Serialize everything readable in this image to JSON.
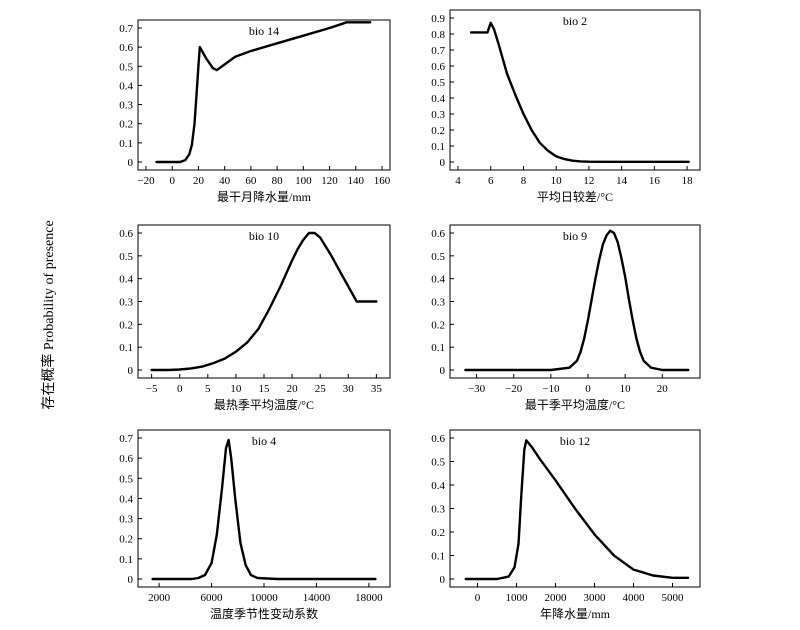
{
  "y_label": "存在概率 Probability of presence",
  "chart_data": [
    {
      "type": "line",
      "title": "bio 14",
      "xlabel": "最干月降水量/mm",
      "ylabel": "",
      "xlim": [
        -20,
        160
      ],
      "ylim": [
        0,
        0.7
      ],
      "xticks": [
        -20,
        0,
        20,
        40,
        60,
        80,
        100,
        120,
        140,
        160
      ],
      "yticks": [
        0,
        0.1,
        0.2,
        0.3,
        0.4,
        0.5,
        0.6,
        0.7
      ],
      "xtick_labels": [
        "−20",
        "0",
        "20",
        "40",
        "60",
        "80",
        "100",
        "120",
        "140",
        "160"
      ],
      "ytick_labels": [
        "0",
        "0.1",
        "0.2",
        "0.3",
        "0.4",
        "0.5",
        "0.6",
        "0.7"
      ],
      "series": [
        {
          "x": [
            -12,
            6,
            10,
            13,
            15,
            17,
            18.5,
            20,
            21,
            26,
            31,
            34,
            40,
            48,
            60,
            80,
            100,
            120,
            133,
            137,
            151
          ],
          "y": [
            0,
            0,
            0.01,
            0.04,
            0.09,
            0.2,
            0.35,
            0.5,
            0.6,
            0.54,
            0.49,
            0.48,
            0.51,
            0.55,
            0.58,
            0.62,
            0.66,
            0.7,
            0.73,
            0.73,
            0.73
          ]
        }
      ]
    },
    {
      "type": "line",
      "title": "bio 2",
      "xlabel": "平均日较差/°C",
      "ylabel": "",
      "xlim": [
        4,
        18.3
      ],
      "ylim": [
        0,
        0.9
      ],
      "xticks": [
        4,
        6,
        8,
        10,
        12,
        14,
        16,
        18
      ],
      "yticks": [
        0,
        0.1,
        0.2,
        0.3,
        0.4,
        0.5,
        0.6,
        0.7,
        0.8,
        0.9
      ],
      "xtick_labels": [
        "4",
        "6",
        "8",
        "10",
        "12",
        "14",
        "16",
        "18"
      ],
      "ytick_labels": [
        "0",
        "0.1",
        "0.2",
        "0.3",
        "0.4",
        "0.5",
        "0.6",
        "0.7",
        "0.8",
        "0.9"
      ],
      "series": [
        {
          "x": [
            4.8,
            5.6,
            5.8,
            6.0,
            6.2,
            6.5,
            7.0,
            7.5,
            8.0,
            8.5,
            9.0,
            9.5,
            10.0,
            10.5,
            11.0,
            11.5,
            12,
            13,
            14,
            16,
            18.1
          ],
          "y": [
            0.81,
            0.81,
            0.81,
            0.87,
            0.83,
            0.73,
            0.55,
            0.42,
            0.3,
            0.2,
            0.12,
            0.07,
            0.035,
            0.018,
            0.008,
            0.004,
            0.002,
            0.001,
            0.001,
            0.001,
            0.001
          ]
        }
      ]
    },
    {
      "type": "line",
      "title": "bio 10",
      "xlabel": "最热季平均温度/°C",
      "ylabel": "",
      "xlim": [
        -6,
        36
      ],
      "ylim": [
        0,
        0.6
      ],
      "xticks": [
        -5,
        0,
        5,
        10,
        15,
        20,
        25,
        30,
        35
      ],
      "yticks": [
        0,
        0.1,
        0.2,
        0.3,
        0.4,
        0.5,
        0.6
      ],
      "xtick_labels": [
        "−5",
        "0",
        "5",
        "10",
        "15",
        "20",
        "25",
        "30",
        "35"
      ],
      "ytick_labels": [
        "0",
        "0.1",
        "0.2",
        "0.3",
        "0.4",
        "0.5",
        "0.6"
      ],
      "series": [
        {
          "x": [
            -5,
            -2,
            0,
            2,
            4,
            6,
            8,
            10,
            12,
            14,
            16,
            18,
            20,
            21,
            22,
            23,
            24,
            25,
            27,
            29,
            31.5,
            33,
            35
          ],
          "y": [
            0,
            0,
            0.002,
            0.007,
            0.015,
            0.03,
            0.05,
            0.08,
            0.12,
            0.18,
            0.27,
            0.37,
            0.48,
            0.53,
            0.57,
            0.6,
            0.6,
            0.58,
            0.5,
            0.41,
            0.3,
            0.3,
            0.3
          ]
        }
      ]
    },
    {
      "type": "line",
      "title": "bio 9",
      "xlabel": "最干季平均温度/°C",
      "ylabel": "",
      "xlim": [
        -35,
        28
      ],
      "ylim": [
        0,
        0.6
      ],
      "xticks": [
        -30,
        -20,
        -10,
        0,
        10,
        20
      ],
      "yticks": [
        0,
        0.1,
        0.2,
        0.3,
        0.4,
        0.5,
        0.6
      ],
      "xtick_labels": [
        "−30",
        "−20",
        "−10",
        "0",
        "10",
        "20"
      ],
      "ytick_labels": [
        "0",
        "0.1",
        "0.2",
        "0.3",
        "0.4",
        "0.5",
        "0.6"
      ],
      "series": [
        {
          "x": [
            -33,
            -10,
            -5,
            -3,
            -2,
            -1,
            0,
            1,
            2,
            3,
            4,
            5,
            6,
            7,
            8,
            9,
            10,
            11,
            12,
            13,
            14,
            15,
            17,
            20,
            27
          ],
          "y": [
            0,
            0,
            0.01,
            0.04,
            0.08,
            0.14,
            0.22,
            0.31,
            0.4,
            0.48,
            0.55,
            0.59,
            0.61,
            0.6,
            0.56,
            0.49,
            0.41,
            0.31,
            0.22,
            0.14,
            0.08,
            0.04,
            0.01,
            0,
            0
          ]
        }
      ]
    },
    {
      "type": "line",
      "title": "bio 4",
      "xlabel": "温度季节性变动系数",
      "ylabel": "",
      "xlim": [
        1000,
        19000
      ],
      "ylim": [
        0,
        0.7
      ],
      "xticks": [
        2000,
        6000,
        10000,
        14000,
        18000
      ],
      "yticks": [
        0,
        0.1,
        0.2,
        0.3,
        0.4,
        0.5,
        0.6,
        0.7
      ],
      "xtick_labels": [
        "2000",
        "6000",
        "10000",
        "14000",
        "18000"
      ],
      "ytick_labels": [
        "0",
        "0.1",
        "0.2",
        "0.3",
        "0.4",
        "0.5",
        "0.6",
        "0.7"
      ],
      "series": [
        {
          "x": [
            1500,
            4500,
            5000,
            5500,
            6000,
            6400,
            6800,
            7100,
            7300,
            7500,
            7800,
            8200,
            8600,
            9000,
            9500,
            11000,
            18500
          ],
          "y": [
            0,
            0,
            0.005,
            0.02,
            0.08,
            0.22,
            0.45,
            0.65,
            0.69,
            0.6,
            0.4,
            0.18,
            0.07,
            0.02,
            0.005,
            0,
            0
          ]
        }
      ]
    },
    {
      "type": "line",
      "title": "bio 12",
      "xlabel": "年降水量/mm",
      "ylabel": "",
      "xlim": [
        -500,
        5500
      ],
      "ylim": [
        0,
        0.6
      ],
      "xticks": [
        0,
        1000,
        2000,
        3000,
        4000,
        5000
      ],
      "yticks": [
        0,
        0.1,
        0.2,
        0.3,
        0.4,
        0.5,
        0.6
      ],
      "xtick_labels": [
        "0",
        "1000",
        "2000",
        "3000",
        "4000",
        "5000"
      ],
      "ytick_labels": [
        "0",
        "0.1",
        "0.2",
        "0.3",
        "0.4",
        "0.5",
        "0.6"
      ],
      "series": [
        {
          "x": [
            -300,
            500,
            800,
            950,
            1050,
            1120,
            1200,
            1250,
            1400,
            1600,
            2000,
            2500,
            3000,
            3500,
            4000,
            4500,
            5000,
            5400
          ],
          "y": [
            0,
            0,
            0.01,
            0.05,
            0.15,
            0.35,
            0.55,
            0.59,
            0.56,
            0.51,
            0.42,
            0.3,
            0.19,
            0.1,
            0.04,
            0.015,
            0.005,
            0.005
          ]
        }
      ]
    }
  ]
}
